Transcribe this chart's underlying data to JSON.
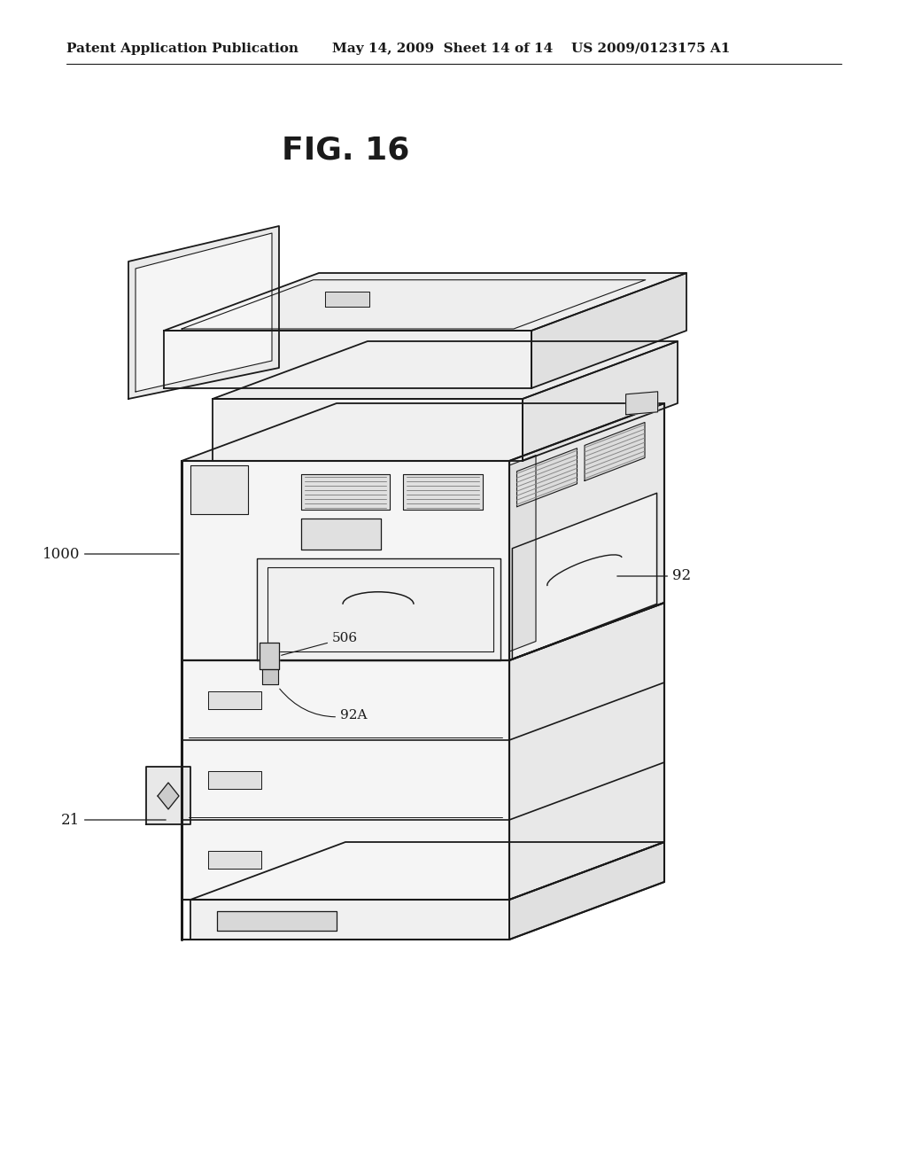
{
  "header_left": "Patent Application Publication",
  "header_mid": "May 14, 2009  Sheet 14 of 14",
  "header_right": "US 2009/0123175 A1",
  "fig_title": "FIG. 16",
  "label_1000": "1000",
  "label_21": "21",
  "label_92": "92",
  "label_506": "506",
  "label_92A": "92A",
  "bg_color": "#ffffff",
  "line_color": "#1a1a1a",
  "header_fontsize": 11,
  "title_fontsize": 26,
  "label_fontsize": 11
}
